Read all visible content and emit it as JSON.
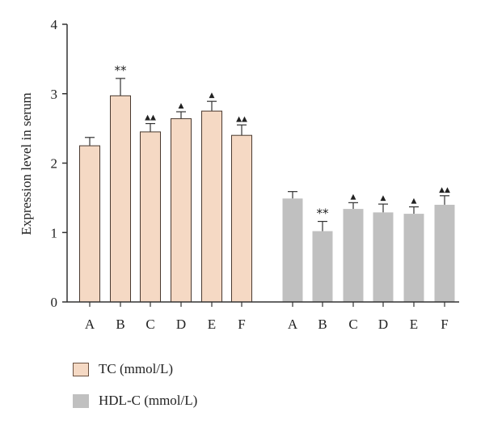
{
  "chart_data": {
    "type": "bar",
    "ylabel": "Expression level in serum",
    "xlabel": "",
    "ylim": [
      0,
      4
    ],
    "yticks": [
      0,
      1,
      2,
      3,
      4
    ],
    "grid": false,
    "legend_position": "bottom-left",
    "series": [
      {
        "name": "TC (mmol/L)",
        "color": "#f5d9c4",
        "categories": [
          "A",
          "B",
          "C",
          "D",
          "E",
          "F"
        ],
        "values": [
          2.25,
          2.97,
          2.45,
          2.64,
          2.75,
          2.4
        ],
        "errors": [
          0.12,
          0.25,
          0.12,
          0.1,
          0.14,
          0.15
        ],
        "marks": [
          "",
          "**",
          "▲▲",
          "▲",
          "▲",
          "▲▲"
        ]
      },
      {
        "name": "HDL-C (mmol/L)",
        "color": "#c0c0c0",
        "categories": [
          "A",
          "B",
          "C",
          "D",
          "E",
          "F"
        ],
        "values": [
          1.49,
          1.02,
          1.34,
          1.29,
          1.27,
          1.4
        ],
        "errors": [
          0.1,
          0.14,
          0.09,
          0.12,
          0.1,
          0.13
        ],
        "marks": [
          "",
          "**",
          "▲",
          "▲",
          "▲",
          "▲▲"
        ]
      }
    ]
  }
}
